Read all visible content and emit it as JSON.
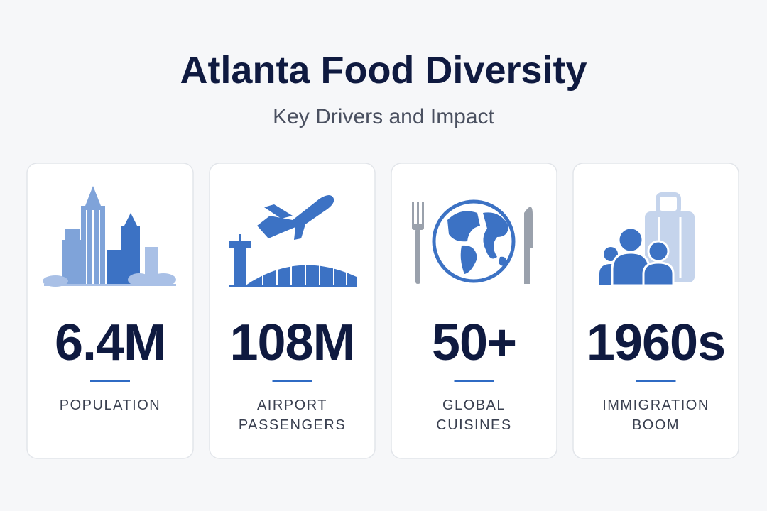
{
  "header": {
    "title": "Atlanta Food Diversity",
    "subtitle": "Key Drivers and Impact"
  },
  "cards": [
    {
      "value": "6.4M",
      "label_lines": [
        "POPULATION"
      ]
    },
    {
      "value": "108M",
      "label_lines": [
        "AIRPORT",
        "PASSENGERS"
      ]
    },
    {
      "value": "50+",
      "label_lines": [
        "GLOBAL",
        "CUISINES"
      ]
    },
    {
      "value": "1960s",
      "label_lines": [
        "IMMIGRATION",
        "BOOM"
      ]
    }
  ]
}
